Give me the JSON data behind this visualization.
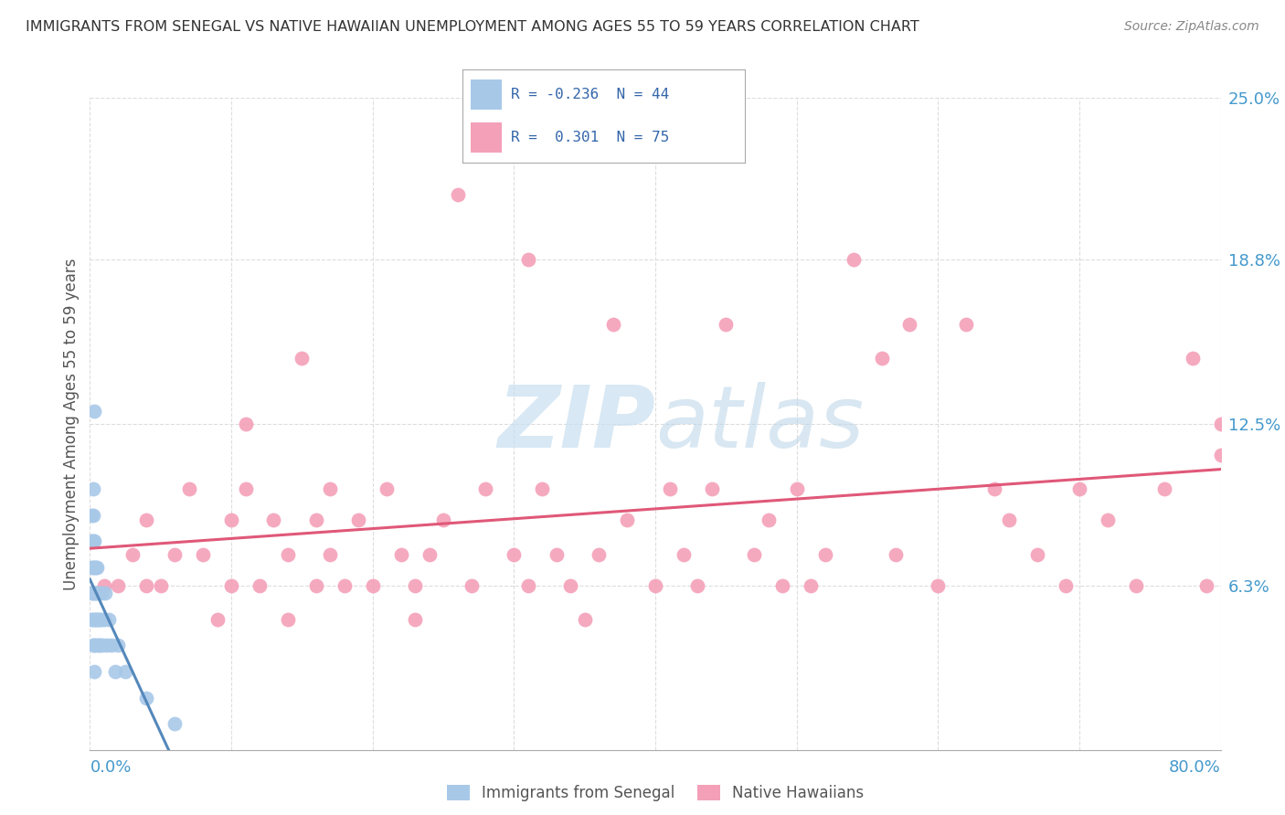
{
  "title": "IMMIGRANTS FROM SENEGAL VS NATIVE HAWAIIAN UNEMPLOYMENT AMONG AGES 55 TO 59 YEARS CORRELATION CHART",
  "source": "Source: ZipAtlas.com",
  "ylabel": "Unemployment Among Ages 55 to 59 years",
  "xlim": [
    0,
    0.8
  ],
  "ylim": [
    0,
    0.25
  ],
  "ytick_vals": [
    0.063,
    0.125,
    0.188,
    0.25
  ],
  "ytick_labels": [
    "6.3%",
    "12.5%",
    "18.8%",
    "25.0%"
  ],
  "xtick_vals": [
    0.0,
    0.8
  ],
  "xtick_labels": [
    "0.0%",
    "80.0%"
  ],
  "r_senegal": -0.236,
  "n_senegal": 44,
  "r_hawaiian": 0.301,
  "n_hawaiian": 75,
  "color_senegal": "#a8c8e8",
  "color_hawaiian": "#f4a0b8",
  "line_color_senegal": "#5588bb",
  "line_color_hawaiian": "#e05878",
  "background_color": "#ffffff",
  "watermark_color": "#c8dff0",
  "grid_color": "#dddddd",
  "senegal_x": [
    0.001,
    0.001,
    0.001,
    0.001,
    0.001,
    0.002,
    0.002,
    0.002,
    0.002,
    0.002,
    0.002,
    0.002,
    0.003,
    0.003,
    0.003,
    0.003,
    0.003,
    0.003,
    0.003,
    0.004,
    0.004,
    0.004,
    0.004,
    0.005,
    0.005,
    0.005,
    0.006,
    0.006,
    0.007,
    0.007,
    0.007,
    0.008,
    0.008,
    0.009,
    0.01,
    0.011,
    0.012,
    0.013,
    0.015,
    0.018,
    0.02,
    0.025,
    0.04,
    0.06
  ],
  "senegal_y": [
    0.05,
    0.08,
    0.06,
    0.07,
    0.09,
    0.04,
    0.05,
    0.06,
    0.07,
    0.08,
    0.09,
    0.1,
    0.03,
    0.04,
    0.05,
    0.06,
    0.07,
    0.08,
    0.13,
    0.04,
    0.05,
    0.06,
    0.07,
    0.05,
    0.06,
    0.07,
    0.04,
    0.05,
    0.04,
    0.05,
    0.06,
    0.05,
    0.06,
    0.04,
    0.05,
    0.06,
    0.04,
    0.05,
    0.04,
    0.03,
    0.04,
    0.03,
    0.02,
    0.01
  ],
  "hawaiian_x": [
    0.01,
    0.02,
    0.03,
    0.04,
    0.04,
    0.05,
    0.06,
    0.07,
    0.08,
    0.09,
    0.1,
    0.1,
    0.11,
    0.11,
    0.12,
    0.13,
    0.14,
    0.14,
    0.15,
    0.16,
    0.16,
    0.17,
    0.17,
    0.18,
    0.19,
    0.2,
    0.21,
    0.22,
    0.23,
    0.23,
    0.24,
    0.25,
    0.26,
    0.27,
    0.28,
    0.3,
    0.31,
    0.31,
    0.32,
    0.33,
    0.34,
    0.35,
    0.36,
    0.37,
    0.38,
    0.4,
    0.41,
    0.42,
    0.43,
    0.44,
    0.45,
    0.47,
    0.48,
    0.49,
    0.5,
    0.51,
    0.52,
    0.54,
    0.56,
    0.57,
    0.58,
    0.6,
    0.62,
    0.64,
    0.65,
    0.67,
    0.69,
    0.7,
    0.72,
    0.74,
    0.76,
    0.78,
    0.79,
    0.8,
    0.8
  ],
  "hawaiian_y": [
    0.063,
    0.063,
    0.075,
    0.063,
    0.088,
    0.063,
    0.075,
    0.1,
    0.075,
    0.05,
    0.063,
    0.088,
    0.1,
    0.125,
    0.063,
    0.088,
    0.05,
    0.075,
    0.15,
    0.063,
    0.088,
    0.1,
    0.075,
    0.063,
    0.088,
    0.063,
    0.1,
    0.075,
    0.063,
    0.05,
    0.075,
    0.088,
    0.213,
    0.063,
    0.1,
    0.075,
    0.063,
    0.188,
    0.1,
    0.075,
    0.063,
    0.05,
    0.075,
    0.163,
    0.088,
    0.063,
    0.1,
    0.075,
    0.063,
    0.1,
    0.163,
    0.075,
    0.088,
    0.063,
    0.1,
    0.063,
    0.075,
    0.188,
    0.15,
    0.075,
    0.163,
    0.063,
    0.163,
    0.1,
    0.088,
    0.075,
    0.063,
    0.1,
    0.088,
    0.063,
    0.1,
    0.15,
    0.063,
    0.125,
    0.113
  ]
}
